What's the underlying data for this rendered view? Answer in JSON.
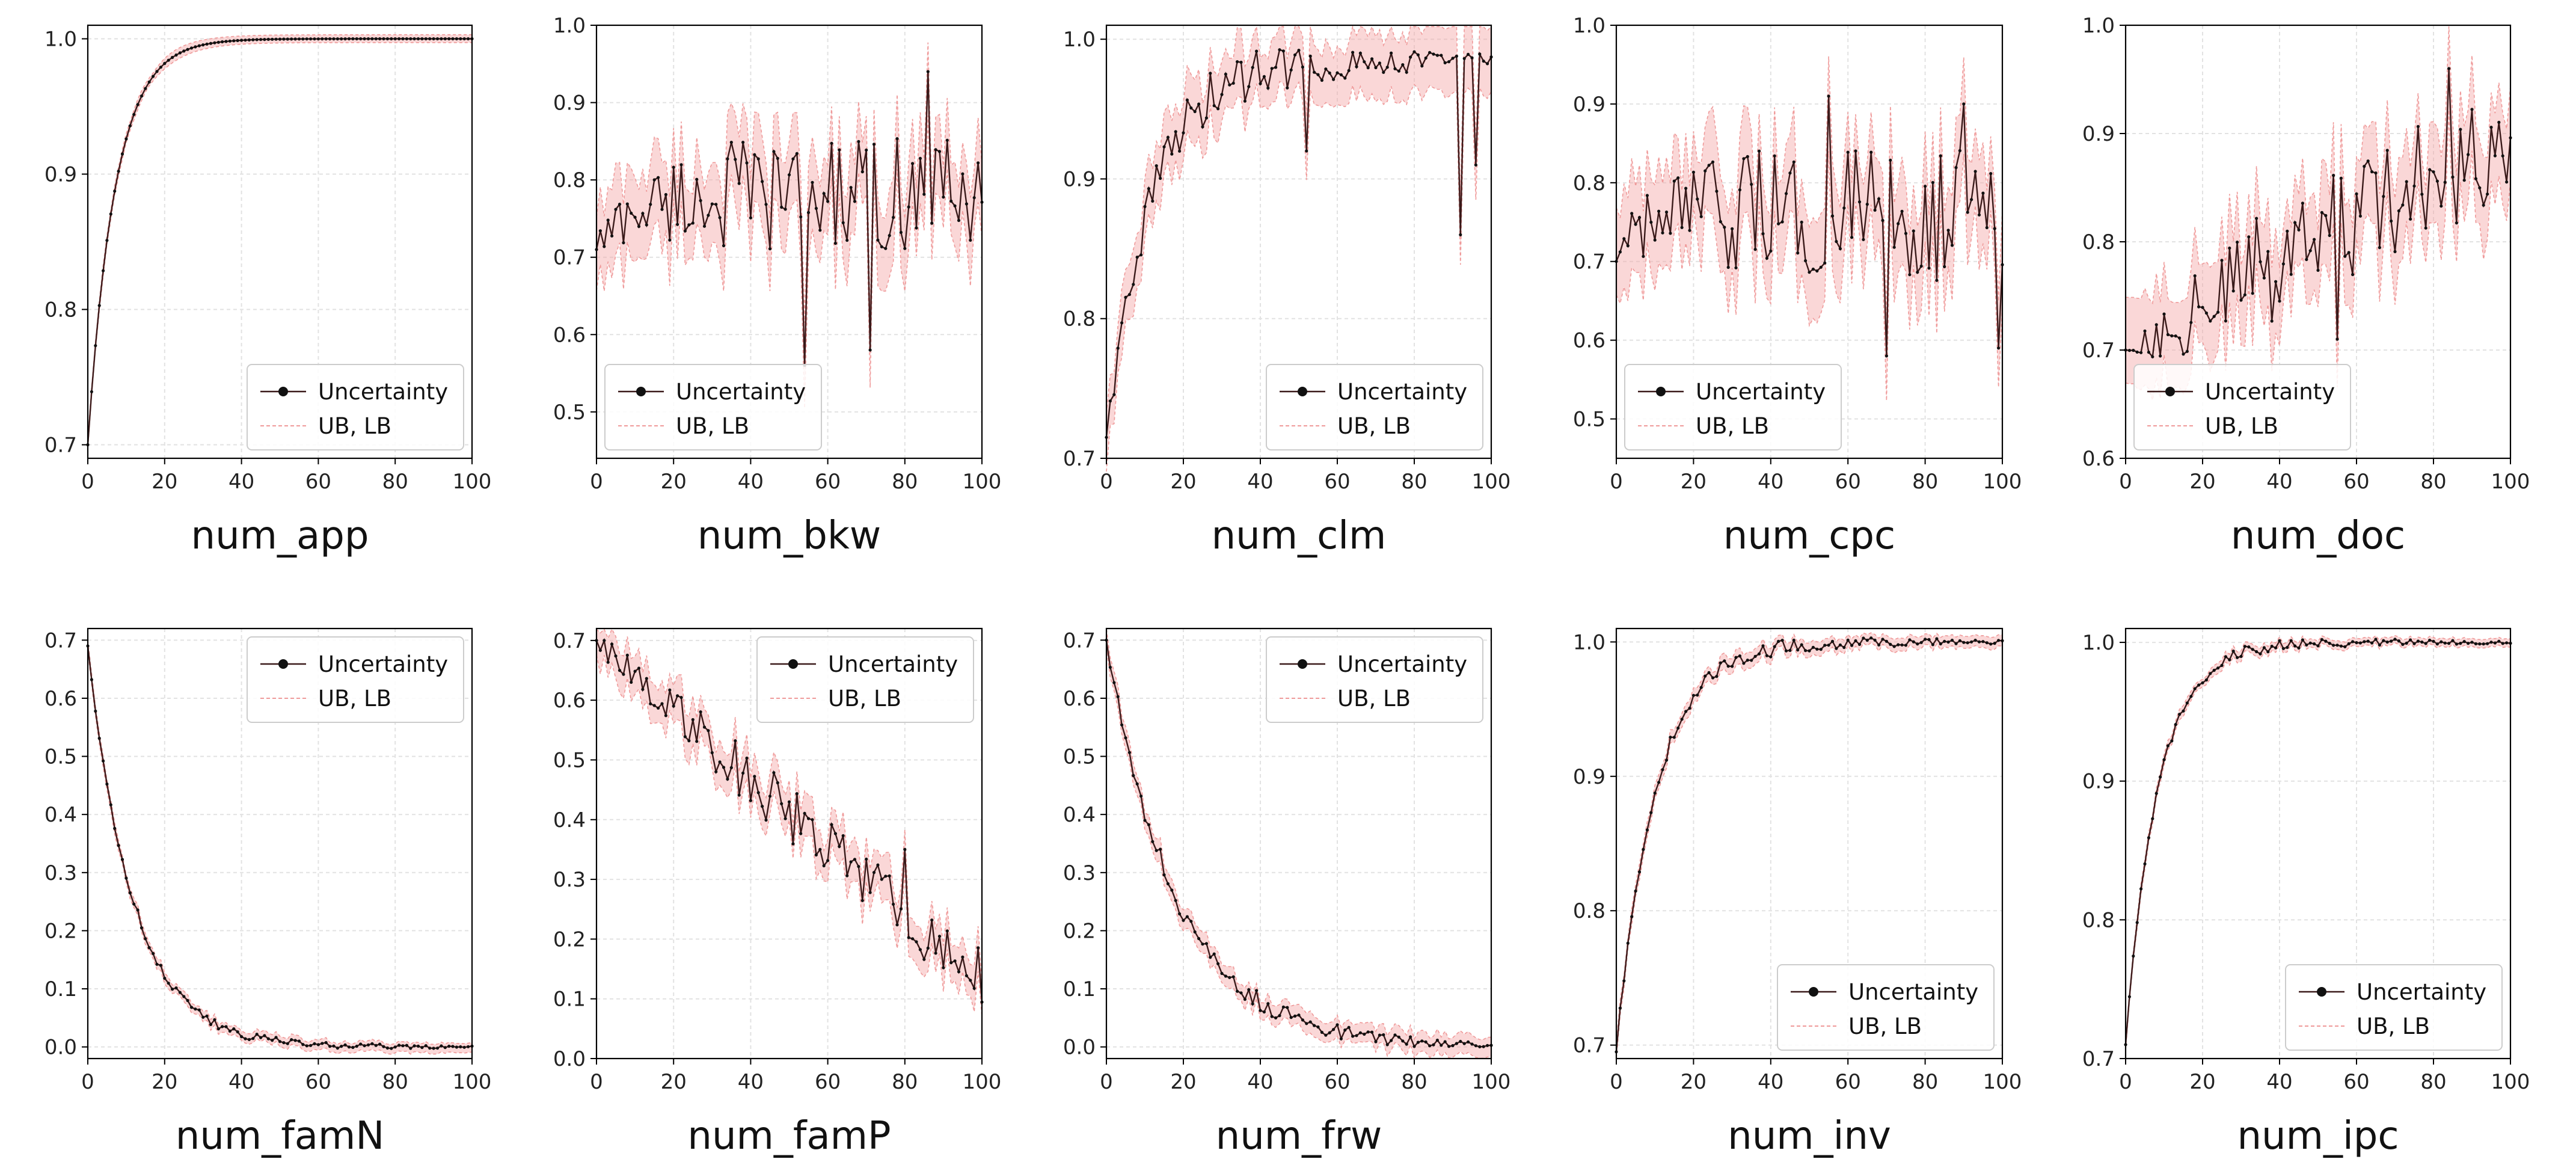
{
  "legend": {
    "series_label": "Uncertainty",
    "band_label": "UB, LB"
  },
  "colors": {
    "line": "#3a1a1a",
    "band": "#f4a7a7",
    "band_edge": "#ef9a9a",
    "grid": "#e2e2e2",
    "axis": "#000000"
  },
  "chart_data": [
    {
      "type": "line",
      "title": "num_app",
      "xlim": [
        0,
        100
      ],
      "ylim": [
        0.69,
        1.01
      ],
      "xticks": [
        0,
        20,
        40,
        60,
        80,
        100
      ],
      "xtick_labels": [
        "0",
        "20",
        "40",
        "60",
        "80",
        "100"
      ],
      "yticks": [
        0.7,
        0.8,
        0.9,
        1.0
      ],
      "ytick_labels": [
        "0.7",
        "0.8",
        "0.9",
        "1.0"
      ],
      "legend_position": "lower right",
      "pattern": "rise",
      "start": 0.7,
      "end": 1.0,
      "rate": 0.14,
      "noise": 0.0,
      "band": 0.004,
      "outliers": []
    },
    {
      "type": "line",
      "title": "num_bkw",
      "xlim": [
        0,
        100
      ],
      "ylim": [
        0.44,
        1.0
      ],
      "xticks": [
        0,
        20,
        40,
        60,
        80,
        100
      ],
      "xtick_labels": [
        "0",
        "20",
        "40",
        "60",
        "80",
        "100"
      ],
      "yticks": [
        0.5,
        0.6,
        0.7,
        0.8,
        0.9,
        1.0
      ],
      "ytick_labels": [
        "0.5",
        "0.6",
        "0.7",
        "0.8",
        "0.9",
        "1.0"
      ],
      "legend_position": "lower left",
      "pattern": "noisy",
      "start": 0.71,
      "end": 0.78,
      "rate": 0.12,
      "noise": 0.075,
      "band": 0.06,
      "outliers": [
        [
          54,
          0.56
        ],
        [
          71,
          0.58
        ],
        [
          86,
          0.94
        ]
      ]
    },
    {
      "type": "line",
      "title": "num_clm",
      "xlim": [
        0,
        100
      ],
      "ylim": [
        0.7,
        1.01
      ],
      "xticks": [
        0,
        20,
        40,
        60,
        80,
        100
      ],
      "xtick_labels": [
        "0",
        "20",
        "40",
        "60",
        "80",
        "100"
      ],
      "yticks": [
        0.7,
        0.8,
        0.9,
        1.0
      ],
      "ytick_labels": [
        "0.7",
        "0.8",
        "0.9",
        "1.0"
      ],
      "legend_position": "lower right",
      "pattern": "rise",
      "start": 0.715,
      "end": 0.985,
      "rate": 0.085,
      "noise": 0.018,
      "band": 0.025,
      "outliers": [
        [
          52,
          0.92
        ],
        [
          92,
          0.86
        ],
        [
          96,
          0.91
        ]
      ]
    },
    {
      "type": "line",
      "title": "num_cpc",
      "xlim": [
        0,
        100
      ],
      "ylim": [
        0.45,
        1.0
      ],
      "xticks": [
        0,
        20,
        40,
        60,
        80,
        100
      ],
      "xtick_labels": [
        "0",
        "20",
        "40",
        "60",
        "80",
        "100"
      ],
      "yticks": [
        0.5,
        0.6,
        0.7,
        0.8,
        0.9,
        1.0
      ],
      "ytick_labels": [
        "0.5",
        "0.6",
        "0.7",
        "0.8",
        "0.9",
        "1.0"
      ],
      "legend_position": "lower left",
      "pattern": "noisy",
      "start": 0.7,
      "end": 0.76,
      "rate": 0.15,
      "noise": 0.085,
      "band": 0.07,
      "outliers": [
        [
          55,
          0.91
        ],
        [
          70,
          0.58
        ],
        [
          90,
          0.9
        ],
        [
          99,
          0.59
        ]
      ]
    },
    {
      "type": "line",
      "title": "num_doc",
      "xlim": [
        0,
        100
      ],
      "ylim": [
        0.6,
        1.0
      ],
      "xticks": [
        0,
        20,
        40,
        60,
        80,
        100
      ],
      "xtick_labels": [
        "0",
        "20",
        "40",
        "60",
        "80",
        "100"
      ],
      "yticks": [
        0.6,
        0.7,
        0.8,
        0.9,
        1.0
      ],
      "ytick_labels": [
        "0.6",
        "0.7",
        "0.8",
        "0.9",
        "1.0"
      ],
      "legend_position": "lower left",
      "pattern": "drift",
      "start": 0.7,
      "end": 0.9,
      "rate": 0.0,
      "noise": 0.055,
      "band": 0.05,
      "outliers": [
        [
          55,
          0.71
        ],
        [
          84,
          0.96
        ]
      ]
    },
    {
      "type": "line",
      "title": "num_famN",
      "xlim": [
        0,
        100
      ],
      "ylim": [
        -0.02,
        0.72
      ],
      "xticks": [
        0,
        20,
        40,
        60,
        80,
        100
      ],
      "xtick_labels": [
        "0",
        "20",
        "40",
        "60",
        "80",
        "100"
      ],
      "yticks": [
        0.0,
        0.1,
        0.2,
        0.3,
        0.4,
        0.5,
        0.6,
        0.7
      ],
      "ytick_labels": [
        "0.0",
        "0.1",
        "0.2",
        "0.3",
        "0.4",
        "0.5",
        "0.6",
        "0.7"
      ],
      "legend_position": "upper right",
      "pattern": "decay",
      "start": 0.69,
      "end": 0.0,
      "rate": 0.085,
      "noise": 0.008,
      "band": 0.01,
      "outliers": []
    },
    {
      "type": "line",
      "title": "num_famP",
      "xlim": [
        0,
        100
      ],
      "ylim": [
        0.0,
        0.72
      ],
      "xticks": [
        0,
        20,
        40,
        60,
        80,
        100
      ],
      "xtick_labels": [
        "0",
        "20",
        "40",
        "60",
        "80",
        "100"
      ],
      "yticks": [
        0.0,
        0.1,
        0.2,
        0.3,
        0.4,
        0.5,
        0.6,
        0.7
      ],
      "ytick_labels": [
        "0.0",
        "0.1",
        "0.2",
        "0.3",
        "0.4",
        "0.5",
        "0.6",
        "0.7"
      ],
      "legend_position": "upper right",
      "pattern": "linear",
      "start": 0.7,
      "end": 0.13,
      "rate": 0.0,
      "noise": 0.05,
      "band": 0.04,
      "outliers": [
        [
          56,
          0.4
        ],
        [
          80,
          0.35
        ]
      ]
    },
    {
      "type": "line",
      "title": "num_frw",
      "xlim": [
        0,
        100
      ],
      "ylim": [
        -0.02,
        0.72
      ],
      "xticks": [
        0,
        20,
        40,
        60,
        80,
        100
      ],
      "xtick_labels": [
        "0",
        "20",
        "40",
        "60",
        "80",
        "100"
      ],
      "yticks": [
        0.0,
        0.1,
        0.2,
        0.3,
        0.4,
        0.5,
        0.6,
        0.7
      ],
      "ytick_labels": [
        "0.0",
        "0.1",
        "0.2",
        "0.3",
        "0.4",
        "0.5",
        "0.6",
        "0.7"
      ],
      "legend_position": "upper right",
      "pattern": "decay",
      "start": 0.7,
      "end": 0.0,
      "rate": 0.055,
      "noise": 0.018,
      "band": 0.02,
      "outliers": []
    },
    {
      "type": "line",
      "title": "num_inv",
      "xlim": [
        0,
        100
      ],
      "ylim": [
        0.69,
        1.01
      ],
      "xticks": [
        0,
        20,
        40,
        60,
        80,
        100
      ],
      "xtick_labels": [
        "0",
        "20",
        "40",
        "60",
        "80",
        "100"
      ],
      "yticks": [
        0.7,
        0.8,
        0.9,
        1.0
      ],
      "ytick_labels": [
        "0.7",
        "0.8",
        "0.9",
        "1.0"
      ],
      "legend_position": "lower right",
      "pattern": "rise",
      "start": 0.695,
      "end": 1.0,
      "rate": 0.1,
      "noise": 0.006,
      "band": 0.006,
      "outliers": []
    },
    {
      "type": "line",
      "title": "num_ipc",
      "xlim": [
        0,
        100
      ],
      "ylim": [
        0.7,
        1.01
      ],
      "xticks": [
        0,
        20,
        40,
        60,
        80,
        100
      ],
      "xtick_labels": [
        "0",
        "20",
        "40",
        "60",
        "80",
        "100"
      ],
      "yticks": [
        0.7,
        0.8,
        0.9,
        1.0
      ],
      "ytick_labels": [
        "0.7",
        "0.8",
        "0.9",
        "1.0"
      ],
      "legend_position": "lower right",
      "pattern": "rise",
      "start": 0.71,
      "end": 1.0,
      "rate": 0.12,
      "noise": 0.004,
      "band": 0.004,
      "outliers": []
    }
  ]
}
